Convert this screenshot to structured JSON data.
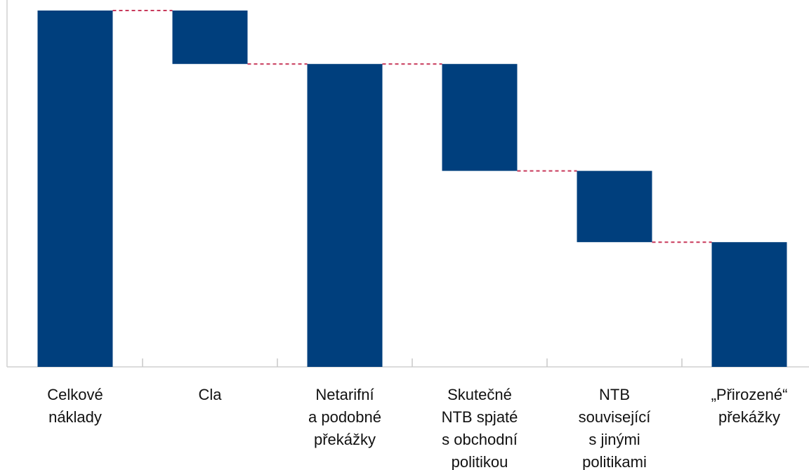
{
  "chart_data": {
    "type": "waterfall",
    "categories": [
      "Celkové\nnáklady",
      "Cla",
      "Netarifní\na podobné\npřekážky",
      "Skutečné\nNTB spjaté\ns obchodní\npolitikou",
      "NTB\nsouvisející\ns jinými\npolitikami",
      "„Přirozené“\npřekážky"
    ],
    "values": [
      100,
      -15,
      85,
      -30,
      -20,
      35
    ],
    "is_total": [
      true,
      false,
      true,
      false,
      false,
      true
    ],
    "color": "#003f7d",
    "connector_color": "#c8385a",
    "ylim": [
      0,
      100
    ]
  }
}
